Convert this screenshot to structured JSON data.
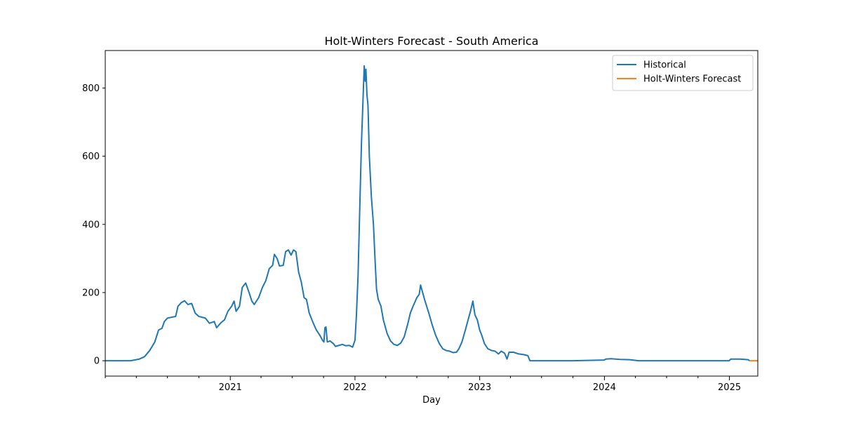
{
  "chart_data": {
    "type": "line",
    "title": "Holt-Winters Forecast - South America",
    "xlabel": "Day",
    "ylabel": "",
    "xlim": [
      "2020-01-01",
      "2025-03-25"
    ],
    "ylim": [
      -45,
      910
    ],
    "x_ticks": [
      "2021",
      "2022",
      "2023",
      "2024",
      "2025"
    ],
    "y_ticks": [
      0,
      200,
      400,
      600,
      800
    ],
    "grid": false,
    "legend_position": "top-right",
    "colors": {
      "Historical": "#1f77b4",
      "Holt-Winters Forecast": "#ff7f0e"
    },
    "series": [
      {
        "name": "Historical",
        "points": [
          [
            "2020-01-01",
            0
          ],
          [
            "2020-03-15",
            0
          ],
          [
            "2020-04-10",
            5
          ],
          [
            "2020-04-25",
            12
          ],
          [
            "2020-05-10",
            30
          ],
          [
            "2020-05-25",
            55
          ],
          [
            "2020-06-05",
            90
          ],
          [
            "2020-06-15",
            95
          ],
          [
            "2020-06-22",
            115
          ],
          [
            "2020-07-01",
            125
          ],
          [
            "2020-07-15",
            128
          ],
          [
            "2020-07-25",
            130
          ],
          [
            "2020-08-01",
            160
          ],
          [
            "2020-08-10",
            170
          ],
          [
            "2020-08-20",
            176
          ],
          [
            "2020-08-30",
            165
          ],
          [
            "2020-09-10",
            168
          ],
          [
            "2020-09-20",
            140
          ],
          [
            "2020-10-01",
            130
          ],
          [
            "2020-10-20",
            125
          ],
          [
            "2020-11-01",
            110
          ],
          [
            "2020-11-15",
            115
          ],
          [
            "2020-11-22",
            97
          ],
          [
            "2020-12-05",
            112
          ],
          [
            "2020-12-15",
            120
          ],
          [
            "2020-12-25",
            145
          ],
          [
            "2021-01-05",
            160
          ],
          [
            "2021-01-12",
            175
          ],
          [
            "2021-01-18",
            145
          ],
          [
            "2021-01-28",
            160
          ],
          [
            "2021-02-05",
            215
          ],
          [
            "2021-02-15",
            228
          ],
          [
            "2021-02-25",
            200
          ],
          [
            "2021-03-05",
            175
          ],
          [
            "2021-03-12",
            165
          ],
          [
            "2021-03-25",
            185
          ],
          [
            "2021-04-05",
            215
          ],
          [
            "2021-04-15",
            235
          ],
          [
            "2021-04-25",
            270
          ],
          [
            "2021-05-05",
            280
          ],
          [
            "2021-05-10",
            312
          ],
          [
            "2021-05-18",
            300
          ],
          [
            "2021-05-25",
            278
          ],
          [
            "2021-06-05",
            280
          ],
          [
            "2021-06-12",
            320
          ],
          [
            "2021-06-20",
            325
          ],
          [
            "2021-06-28",
            310
          ],
          [
            "2021-07-05",
            325
          ],
          [
            "2021-07-12",
            320
          ],
          [
            "2021-07-20",
            260
          ],
          [
            "2021-07-28",
            230
          ],
          [
            "2021-08-05",
            185
          ],
          [
            "2021-08-12",
            180
          ],
          [
            "2021-08-20",
            140
          ],
          [
            "2021-09-01",
            110
          ],
          [
            "2021-09-10",
            90
          ],
          [
            "2021-09-20",
            75
          ],
          [
            "2021-09-28",
            60
          ],
          [
            "2021-10-02",
            55
          ],
          [
            "2021-10-05",
            97
          ],
          [
            "2021-10-08",
            99
          ],
          [
            "2021-10-12",
            55
          ],
          [
            "2021-10-20",
            58
          ],
          [
            "2021-10-30",
            50
          ],
          [
            "2021-11-05",
            42
          ],
          [
            "2021-11-15",
            45
          ],
          [
            "2021-11-25",
            48
          ],
          [
            "2021-12-05",
            44
          ],
          [
            "2021-12-15",
            45
          ],
          [
            "2021-12-25",
            40
          ],
          [
            "2022-01-01",
            60
          ],
          [
            "2022-01-05",
            130
          ],
          [
            "2022-01-10",
            250
          ],
          [
            "2022-01-15",
            450
          ],
          [
            "2022-01-20",
            640
          ],
          [
            "2022-01-25",
            780
          ],
          [
            "2022-01-28",
            865
          ],
          [
            "2022-01-31",
            820
          ],
          [
            "2022-02-02",
            855
          ],
          [
            "2022-02-05",
            780
          ],
          [
            "2022-02-08",
            750
          ],
          [
            "2022-02-12",
            600
          ],
          [
            "2022-02-18",
            480
          ],
          [
            "2022-02-24",
            400
          ],
          [
            "2022-03-01",
            290
          ],
          [
            "2022-03-05",
            210
          ],
          [
            "2022-03-10",
            180
          ],
          [
            "2022-03-18",
            160
          ],
          [
            "2022-03-25",
            120
          ],
          [
            "2022-04-05",
            80
          ],
          [
            "2022-04-15",
            58
          ],
          [
            "2022-04-25",
            48
          ],
          [
            "2022-05-05",
            45
          ],
          [
            "2022-05-15",
            52
          ],
          [
            "2022-05-25",
            70
          ],
          [
            "2022-06-05",
            110
          ],
          [
            "2022-06-12",
            140
          ],
          [
            "2022-06-20",
            160
          ],
          [
            "2022-07-01",
            185
          ],
          [
            "2022-07-08",
            195
          ],
          [
            "2022-07-12",
            222
          ],
          [
            "2022-07-18",
            200
          ],
          [
            "2022-07-25",
            175
          ],
          [
            "2022-08-05",
            140
          ],
          [
            "2022-08-15",
            105
          ],
          [
            "2022-08-25",
            75
          ],
          [
            "2022-09-05",
            50
          ],
          [
            "2022-09-15",
            35
          ],
          [
            "2022-09-25",
            30
          ],
          [
            "2022-10-05",
            28
          ],
          [
            "2022-10-15",
            24
          ],
          [
            "2022-10-25",
            25
          ],
          [
            "2022-11-01",
            35
          ],
          [
            "2022-11-10",
            55
          ],
          [
            "2022-11-20",
            90
          ],
          [
            "2022-11-28",
            120
          ],
          [
            "2022-12-05",
            145
          ],
          [
            "2022-12-12",
            175
          ],
          [
            "2022-12-18",
            135
          ],
          [
            "2022-12-25",
            120
          ],
          [
            "2023-01-01",
            90
          ],
          [
            "2023-01-08",
            72
          ],
          [
            "2023-01-15",
            50
          ],
          [
            "2023-01-25",
            35
          ],
          [
            "2023-02-05",
            30
          ],
          [
            "2023-02-15",
            28
          ],
          [
            "2023-02-25",
            20
          ],
          [
            "2023-03-05",
            28
          ],
          [
            "2023-03-15",
            22
          ],
          [
            "2023-03-22",
            5
          ],
          [
            "2023-03-28",
            25
          ],
          [
            "2023-04-10",
            25
          ],
          [
            "2023-04-25",
            20
          ],
          [
            "2023-05-10",
            18
          ],
          [
            "2023-05-22",
            15
          ],
          [
            "2023-05-28",
            0
          ],
          [
            "2023-10-01",
            0
          ],
          [
            "2023-12-31",
            2
          ],
          [
            "2024-01-05",
            5
          ],
          [
            "2024-01-20",
            6
          ],
          [
            "2024-02-15",
            4
          ],
          [
            "2024-03-15",
            3
          ],
          [
            "2024-04-10",
            0
          ],
          [
            "2024-12-31",
            0
          ],
          [
            "2025-01-05",
            5
          ],
          [
            "2025-02-01",
            5
          ],
          [
            "2025-02-25",
            3
          ],
          [
            "2025-03-01",
            0
          ]
        ]
      },
      {
        "name": "Holt-Winters Forecast",
        "points": [
          [
            "2025-03-01",
            0
          ],
          [
            "2025-03-25",
            0
          ]
        ]
      }
    ]
  }
}
